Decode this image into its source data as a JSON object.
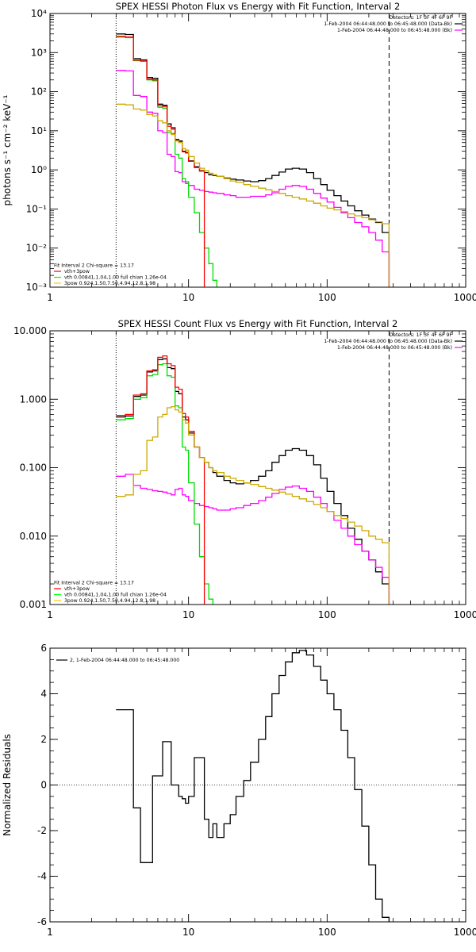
{
  "chart_data": [
    {
      "type": "line",
      "title": "SPEX HESSI Photon Flux vs Energy with Fit Function, Interval 2",
      "xlabel": "",
      "ylabel": "photons s⁻¹ cm⁻² keV⁻¹",
      "xscale": "log",
      "yscale": "log",
      "xlim": [
        1,
        1000
      ],
      "ylim": [
        0.001,
        10000
      ],
      "xticks": [
        1,
        10,
        100,
        1000
      ],
      "xticklabels": [
        "1",
        "10",
        "100",
        "1000"
      ],
      "yticks": [
        0.001,
        0.01,
        0.1,
        1,
        10,
        100,
        1000,
        10000
      ],
      "yticklabels": [
        "10⁻³",
        "10⁻²",
        "10⁻¹",
        "10⁰",
        "10¹",
        "10²",
        "10³",
        "10⁴"
      ],
      "vlines": [
        {
          "x": 3,
          "style": "dotted"
        },
        {
          "x": 280,
          "style": "dashed"
        }
      ],
      "legend_tr": [
        {
          "text": "Detectors: 1F 3F 4F 6F 9F",
          "color": ""
        },
        {
          "text": "1-Feb-2004 06:44:48.000 to 06:45:48.000 (Data-Bk)",
          "color": "#000000"
        },
        {
          "text": "1-Feb-2004 06:44:48.000 to 06:45:48.000 (Bk)",
          "color": "#ff00ff"
        }
      ],
      "legend_bl": [
        {
          "text": "Fit Interval 2   Chi-square = 13.17",
          "color": ""
        },
        {
          "text": "vth+3pow",
          "color": "#ff0000"
        },
        {
          "text": "vth 0.00841,1.04,1.00  full chian 1.26e-04",
          "color": "#00ff00"
        },
        {
          "text": "3pow 0.924,1.50,7.50,4.94,12.8,1.98",
          "color": "#ffcc00"
        }
      ],
      "series": [
        {
          "color": "#000000",
          "x": [
            3,
            3.5,
            4,
            4.5,
            5,
            5.5,
            6,
            6.5,
            7,
            7.5,
            8,
            8.5,
            9,
            9.5,
            10,
            11,
            12,
            13,
            14,
            15,
            16,
            18,
            20,
            22,
            25,
            28,
            32,
            36,
            40,
            45,
            50,
            56,
            63,
            71,
            80,
            90,
            100,
            112,
            126,
            141,
            158,
            178,
            200,
            224,
            250,
            280
          ],
          "y": [
            3000,
            2900,
            700,
            650,
            230,
            220,
            48,
            45,
            15,
            12,
            6,
            5.5,
            3,
            2.8,
            1.7,
            1.2,
            0.95,
            0.85,
            0.75,
            0.72,
            0.68,
            0.62,
            0.58,
            0.55,
            0.52,
            0.5,
            0.53,
            0.6,
            0.72,
            0.88,
            1.05,
            1.1,
            1.05,
            0.85,
            0.6,
            0.42,
            0.3,
            0.22,
            0.16,
            0.12,
            0.09,
            0.07,
            0.055,
            0.045,
            0.025,
            0.008
          ]
        },
        {
          "color": "#ff00ff",
          "x": [
            3,
            3.5,
            4,
            4.5,
            5,
            5.5,
            6,
            6.5,
            7,
            7.5,
            8,
            8.5,
            9,
            9.5,
            10,
            11,
            12,
            13,
            14,
            15,
            16,
            18,
            20,
            22,
            25,
            28,
            32,
            36,
            40,
            45,
            50,
            56,
            63,
            71,
            80,
            90,
            100,
            112,
            126,
            141,
            158,
            178,
            200,
            224,
            250,
            280
          ],
          "y": [
            350,
            340,
            80,
            75,
            30,
            28,
            10,
            9,
            2.5,
            2.2,
            0.9,
            0.85,
            0.5,
            0.45,
            0.4,
            0.32,
            0.3,
            0.28,
            0.27,
            0.26,
            0.25,
            0.23,
            0.22,
            0.2,
            0.2,
            0.21,
            0.21,
            0.23,
            0.26,
            0.32,
            0.38,
            0.4,
            0.38,
            0.32,
            0.25,
            0.19,
            0.15,
            0.11,
            0.08,
            0.06,
            0.045,
            0.035,
            0.025,
            0.016,
            0.008,
            0.003
          ]
        },
        {
          "color": "#00dd00",
          "x": [
            3,
            3.5,
            4,
            4.5,
            5,
            5.5,
            6,
            6.5,
            7,
            7.5,
            8,
            8.5,
            9,
            9.5,
            10,
            11,
            12,
            13,
            14,
            15,
            16
          ],
          "y": [
            2500,
            2400,
            620,
            600,
            200,
            190,
            40,
            38,
            9,
            8.5,
            2.5,
            2,
            0.6,
            0.5,
            0.2,
            0.08,
            0.025,
            0.01,
            0.004,
            0.0015,
            0.0008
          ]
        },
        {
          "color": "#ff0000",
          "x": [
            3,
            3.5,
            4,
            4.5,
            5,
            5.5,
            6,
            6.5,
            7,
            7.5,
            8,
            8.5,
            9,
            9.5,
            10,
            11,
            12,
            13
          ],
          "y": [
            2600,
            2500,
            640,
            610,
            210,
            200,
            44,
            42,
            13,
            11,
            5.6,
            5.2,
            2.9,
            2.7,
            1.65,
            1.15,
            0.93,
            0.83
          ]
        },
        {
          "color": "#ccaa00",
          "x": [
            3,
            3.5,
            4,
            4.5,
            5,
            5.5,
            6,
            6.5,
            7,
            7.5,
            8,
            8.5,
            9,
            9.5,
            10,
            11,
            12,
            13,
            14,
            15,
            16,
            18,
            20,
            22,
            25,
            28,
            32,
            36,
            40,
            45,
            50,
            56,
            63,
            71,
            80,
            90,
            100,
            112,
            126,
            141,
            158,
            178,
            200,
            224,
            250,
            280
          ],
          "y": [
            48,
            46,
            36,
            34,
            26,
            24,
            18,
            16,
            10,
            8,
            5.5,
            5,
            3.5,
            3.2,
            2.2,
            1.5,
            1.1,
            0.95,
            0.82,
            0.75,
            0.68,
            0.6,
            0.52,
            0.48,
            0.42,
            0.38,
            0.34,
            0.31,
            0.28,
            0.25,
            0.22,
            0.2,
            0.18,
            0.16,
            0.14,
            0.12,
            0.105,
            0.095,
            0.085,
            0.075,
            0.067,
            0.06,
            0.053,
            0.047,
            0.042,
            0.038
          ]
        }
      ]
    },
    {
      "type": "line",
      "title": "SPEX HESSI Count Flux vs Energy with Fit Function, Interval 2",
      "xlabel": "",
      "ylabel": "",
      "xscale": "log",
      "yscale": "log",
      "xlim": [
        1,
        1000
      ],
      "ylim": [
        0.001,
        10
      ],
      "xticks": [
        1,
        10,
        100,
        1000
      ],
      "xticklabels": [
        "1",
        "10",
        "100",
        "1000"
      ],
      "yticks": [
        0.001,
        0.01,
        0.1,
        1,
        10
      ],
      "yticklabels": [
        "0.001",
        "0.010",
        "0.100",
        "1.000",
        "10.000"
      ],
      "vlines": [
        {
          "x": 3,
          "style": "dotted"
        },
        {
          "x": 280,
          "style": "dashed"
        }
      ],
      "legend_tr": [
        {
          "text": "Detectors: 1F 3F 4F 6F 9F",
          "color": ""
        },
        {
          "text": "1-Feb-2004 06:44:48.000 to 06:45:48.000 (Data-Bk)",
          "color": "#000000"
        },
        {
          "text": "1-Feb-2004 06:44:48.000 to 06:45:48.000 (Bk)",
          "color": "#ff00ff"
        }
      ],
      "legend_bl": [
        {
          "text": "Fit Interval 2   Chi-square = 13.17",
          "color": ""
        },
        {
          "text": "vth+3pow",
          "color": "#ff0000"
        },
        {
          "text": "vth 0.00841,1.04,1.00  full chian 1.26e-04",
          "color": "#00ff00"
        },
        {
          "text": "3pow 0.924,1.50,7.50,4.94,12.8,1.98",
          "color": "#ffcc00"
        }
      ],
      "series": [
        {
          "color": "#000000",
          "x": [
            3,
            3.5,
            4,
            4.5,
            5,
            5.5,
            6,
            6.5,
            7,
            7.5,
            8,
            8.5,
            9,
            9.5,
            10,
            11,
            12,
            13,
            14,
            15,
            16,
            18,
            20,
            22,
            25,
            28,
            32,
            36,
            40,
            45,
            50,
            56,
            63,
            71,
            80,
            90,
            100,
            112,
            126,
            141,
            158,
            178,
            200,
            224,
            250,
            280
          ],
          "y": [
            0.55,
            0.57,
            1.1,
            1.15,
            2.5,
            2.6,
            3.8,
            3.9,
            2.9,
            2.8,
            1.3,
            1.2,
            0.55,
            0.5,
            0.32,
            0.2,
            0.14,
            0.12,
            0.1,
            0.085,
            0.075,
            0.065,
            0.06,
            0.058,
            0.06,
            0.065,
            0.075,
            0.09,
            0.12,
            0.15,
            0.18,
            0.19,
            0.18,
            0.15,
            0.11,
            0.07,
            0.045,
            0.03,
            0.02,
            0.013,
            0.009,
            0.006,
            0.0045,
            0.003,
            0.002,
            0.0012
          ]
        },
        {
          "color": "#ff00ff",
          "x": [
            3,
            3.5,
            4,
            4.5,
            5,
            5.5,
            6,
            6.5,
            7,
            7.5,
            8,
            8.5,
            9,
            9.5,
            10,
            11,
            12,
            13,
            14,
            15,
            16,
            18,
            20,
            22,
            25,
            28,
            32,
            36,
            40,
            45,
            50,
            56,
            63,
            71,
            80,
            90,
            100,
            112,
            126,
            141,
            158,
            178,
            200,
            224,
            250,
            280
          ],
          "y": [
            0.075,
            0.08,
            0.055,
            0.05,
            0.048,
            0.046,
            0.045,
            0.044,
            0.042,
            0.04,
            0.048,
            0.05,
            0.04,
            0.038,
            0.033,
            0.03,
            0.028,
            0.027,
            0.026,
            0.025,
            0.024,
            0.024,
            0.025,
            0.026,
            0.028,
            0.03,
            0.033,
            0.037,
            0.042,
            0.048,
            0.052,
            0.054,
            0.05,
            0.045,
            0.037,
            0.03,
            0.023,
            0.017,
            0.013,
            0.01,
            0.0075,
            0.006,
            0.0045,
            0.0035,
            0.0025,
            0.0015
          ]
        },
        {
          "color": "#00dd00",
          "x": [
            3,
            3.5,
            4,
            4.5,
            5,
            5.5,
            6,
            6.5,
            7,
            7.5,
            8,
            8.5,
            9,
            9.5,
            10,
            11,
            12,
            13,
            14,
            15
          ],
          "y": [
            0.5,
            0.52,
            1.0,
            1.05,
            2.2,
            2.3,
            3.2,
            3.3,
            2.2,
            2.1,
            0.8,
            0.75,
            0.2,
            0.18,
            0.06,
            0.015,
            0.005,
            0.002,
            0.0012,
            0.0008
          ]
        },
        {
          "color": "#ff0000",
          "x": [
            3,
            3.5,
            4,
            4.5,
            5,
            5.5,
            6,
            6.5,
            7,
            7.5,
            8,
            8.5,
            9,
            9.5,
            10,
            11,
            12,
            13
          ],
          "y": [
            0.58,
            0.6,
            1.15,
            1.2,
            2.6,
            2.7,
            4.1,
            4.3,
            3.3,
            3.1,
            1.5,
            1.4,
            0.62,
            0.55,
            0.34,
            0.2,
            0.14,
            0.12
          ]
        },
        {
          "color": "#ccaa00",
          "x": [
            3,
            3.5,
            4,
            4.5,
            5,
            5.5,
            6,
            6.5,
            7,
            7.5,
            8,
            8.5,
            9,
            9.5,
            10,
            11,
            12,
            13,
            14,
            15,
            16,
            18,
            20,
            22,
            25,
            28,
            32,
            36,
            40,
            45,
            50,
            56,
            63,
            71,
            80,
            90,
            100,
            112,
            126,
            141,
            158,
            178,
            200,
            224,
            250,
            280
          ],
          "y": [
            0.038,
            0.04,
            0.08,
            0.09,
            0.25,
            0.28,
            0.55,
            0.6,
            0.75,
            0.78,
            0.7,
            0.65,
            0.5,
            0.45,
            0.3,
            0.2,
            0.14,
            0.12,
            0.1,
            0.09,
            0.085,
            0.075,
            0.07,
            0.065,
            0.06,
            0.057,
            0.053,
            0.05,
            0.047,
            0.044,
            0.041,
            0.038,
            0.035,
            0.032,
            0.029,
            0.026,
            0.023,
            0.02,
            0.018,
            0.016,
            0.014,
            0.012,
            0.01,
            0.009,
            0.008,
            0.007
          ]
        }
      ]
    },
    {
      "type": "line",
      "title": "",
      "xlabel": "",
      "ylabel": "Normalized Residuals",
      "xscale": "log",
      "yscale": "linear",
      "xlim": [
        1,
        1000
      ],
      "ylim": [
        -6,
        6
      ],
      "xticks": [
        1,
        10,
        100,
        1000
      ],
      "xticklabels": [
        "1",
        "10",
        "100",
        "1000"
      ],
      "yticks": [
        -6,
        -4,
        -2,
        0,
        2,
        4,
        6
      ],
      "yticklabels": [
        "-6",
        "-4",
        "-2",
        "0",
        "2",
        "4",
        "6"
      ],
      "hlines": [
        {
          "y": 0,
          "style": "dotted"
        }
      ],
      "legend_tr": [],
      "legend_bl": [],
      "legend_tl": [
        {
          "text": "2, 1-Feb-2004 06:44:48.000 to 06:45:48.000",
          "color": "#000000"
        }
      ],
      "series": [
        {
          "color": "#000000",
          "x": [
            3,
            3.5,
            4,
            4.5,
            5,
            5.5,
            6,
            6.5,
            7,
            7.5,
            8,
            8.5,
            9,
            9.5,
            10,
            11,
            12,
            13,
            14,
            15,
            16,
            18,
            20,
            22,
            25,
            28,
            32,
            36,
            40,
            45,
            50,
            56,
            63,
            71,
            80,
            90,
            100,
            112,
            126,
            141,
            158,
            178,
            200,
            224,
            250,
            280
          ],
          "y": [
            3.3,
            3.3,
            -1.0,
            -3.4,
            -3.4,
            0.4,
            0.4,
            1.9,
            1.9,
            0.0,
            0.0,
            -0.5,
            -0.6,
            -0.8,
            -0.5,
            1.2,
            1.2,
            -1.5,
            -2.3,
            -1.7,
            -2.3,
            -1.7,
            -1.3,
            -0.5,
            0.2,
            1.0,
            2.0,
            3.0,
            4.0,
            4.8,
            5.4,
            5.8,
            5.9,
            5.7,
            5.2,
            4.6,
            4.0,
            3.3,
            2.4,
            1.2,
            -0.2,
            -1.8,
            -3.5,
            -5.0,
            -5.8,
            -6.0
          ]
        }
      ]
    }
  ]
}
